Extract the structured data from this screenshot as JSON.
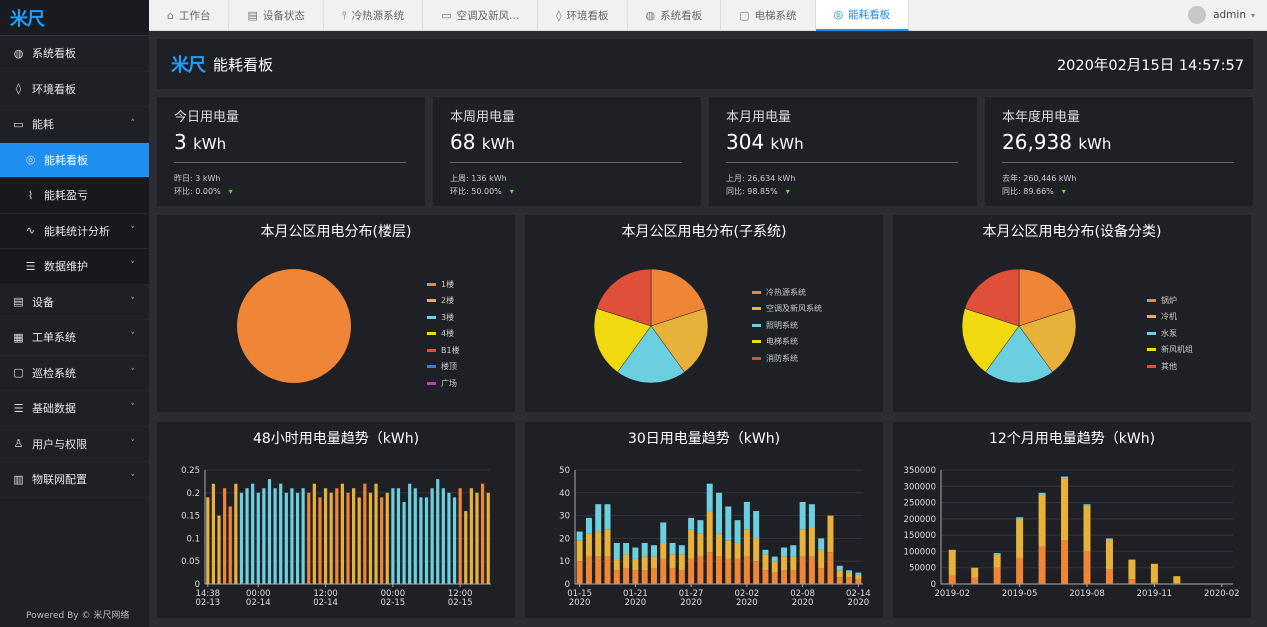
{
  "app": {
    "logo": "米尺",
    "footer": "Powered By © 米尺网络"
  },
  "sidebar": {
    "items": [
      {
        "label": "系统看板",
        "icon": "globe-icon",
        "glyph": "◍",
        "level": 1,
        "active": false,
        "chevron": ""
      },
      {
        "label": "环境看板",
        "icon": "drop-icon",
        "glyph": "◊",
        "level": 1,
        "active": false,
        "chevron": ""
      },
      {
        "label": "能耗",
        "icon": "monitor-icon",
        "glyph": "▭",
        "level": 1,
        "active": false,
        "chevron": "˄"
      },
      {
        "label": "能耗看板",
        "icon": "dashboard-icon",
        "glyph": "◎",
        "level": 2,
        "active": true,
        "chevron": ""
      },
      {
        "label": "能耗盈亏",
        "icon": "line-chart-icon",
        "glyph": "⌇",
        "level": 2,
        "active": false,
        "chevron": ""
      },
      {
        "label": "能耗统计分析",
        "icon": "pulse-icon",
        "glyph": "∿",
        "level": 2,
        "active": false,
        "chevron": "˅"
      },
      {
        "label": "数据维护",
        "icon": "database-icon",
        "glyph": "☰",
        "level": 2,
        "active": false,
        "chevron": "˅"
      },
      {
        "label": "设备",
        "icon": "device-icon",
        "glyph": "▤",
        "level": 1,
        "active": false,
        "chevron": "˅"
      },
      {
        "label": "工单系统",
        "icon": "clipboard-icon",
        "glyph": "▦",
        "level": 1,
        "active": false,
        "chevron": "˅"
      },
      {
        "label": "巡检系统",
        "icon": "note-icon",
        "glyph": "▢",
        "level": 1,
        "active": false,
        "chevron": "˅"
      },
      {
        "label": "基础数据",
        "icon": "stack-icon",
        "glyph": "☰",
        "level": 1,
        "active": false,
        "chevron": "˅"
      },
      {
        "label": "用户与权限",
        "icon": "users-icon",
        "glyph": "♙",
        "level": 1,
        "active": false,
        "chevron": "˅"
      },
      {
        "label": "物联网配置",
        "icon": "building-icon",
        "glyph": "▥",
        "level": 1,
        "active": false,
        "chevron": "˅"
      }
    ]
  },
  "tabs": [
    {
      "label": "工作台",
      "icon": "home-icon",
      "glyph": "⌂",
      "active": false
    },
    {
      "label": "设备状态",
      "icon": "server-icon",
      "glyph": "▤",
      "active": false
    },
    {
      "label": "冷热源系统",
      "icon": "thermometer-icon",
      "glyph": "⫯",
      "active": false
    },
    {
      "label": "空调及新风...",
      "icon": "aircon-icon",
      "glyph": "▭",
      "active": false
    },
    {
      "label": "环境看板",
      "icon": "drop-icon",
      "glyph": "◊",
      "active": false
    },
    {
      "label": "系统看板",
      "icon": "globe-icon",
      "glyph": "◍",
      "active": false
    },
    {
      "label": "电梯系统",
      "icon": "note-icon",
      "glyph": "▢",
      "active": false
    },
    {
      "label": "能耗看板",
      "icon": "dashboard-icon",
      "glyph": "◎",
      "active": true
    }
  ],
  "user": {
    "name": "admin",
    "caret": "▾"
  },
  "header": {
    "logo": "米尺",
    "title": "能耗看板",
    "datetime": "2020年02月15日 14:57:57"
  },
  "stats": [
    {
      "title": "今日用电量",
      "value": "3",
      "unit": "kWh",
      "line1_label": "昨日:",
      "line1_value": "3 kWh",
      "line2_label": "环比:",
      "line2_value": "0.00%"
    },
    {
      "title": "本周用电量",
      "value": "68",
      "unit": "kWh",
      "line1_label": "上周:",
      "line1_value": "136 kWh",
      "line2_label": "环比:",
      "line2_value": "50.00%"
    },
    {
      "title": "本月用电量",
      "value": "304",
      "unit": "kWh",
      "line1_label": "上月:",
      "line1_value": "26,634 kWh",
      "line2_label": "同比:",
      "line2_value": "98.85%"
    },
    {
      "title": "本年度用电量",
      "value": "26,938",
      "unit": "kWh",
      "line1_label": "去年:",
      "line1_value": "260,446 kWh",
      "line2_label": "同比:",
      "line2_value": "89.66%"
    }
  ],
  "stat_arrow": "▾",
  "colors": {
    "c1": "#ee8537",
    "c2": "#e8b13a",
    "c3": "#6bcfe0",
    "c4": "#f0d90f",
    "c5": "#e04f3a",
    "c6": "#3a7ddd",
    "c7": "#b93fb3",
    "accent": "#1e8ff0"
  },
  "chart_data": [
    {
      "type": "pie",
      "title": "本月公区用电分布(楼层)",
      "legend": [
        "1楼",
        "2楼",
        "3楼",
        "4楼",
        "B1楼",
        "楼顶",
        "广场"
      ],
      "values": [
        100,
        0,
        0,
        0,
        0,
        0,
        0
      ]
    },
    {
      "type": "pie",
      "title": "本月公区用电分布(子系统)",
      "legend": [
        "冷热源系统",
        "空调及新风系统",
        "照明系统",
        "电梯系统",
        "消防系统"
      ],
      "values": [
        20,
        20,
        20,
        20,
        20
      ]
    },
    {
      "type": "pie",
      "title": "本月公区用电分布(设备分类)",
      "legend": [
        "锅炉",
        "冷机",
        "水泵",
        "新风机组",
        "其他"
      ],
      "values": [
        20,
        20,
        20,
        20,
        20
      ]
    },
    {
      "type": "bar",
      "title": "48小时用电量趋势（kWh)",
      "ylim": [
        0,
        0.25
      ],
      "yticks": [
        "0",
        "0.05",
        "0.1",
        "0.15",
        "0.2",
        "0.25"
      ],
      "xticks": [
        {
          "i": 0,
          "l1": "14:38",
          "l2": "02-13"
        },
        {
          "i": 9,
          "l1": "00:00",
          "l2": "02-14"
        },
        {
          "i": 21,
          "l1": "12:00",
          "l2": "02-14"
        },
        {
          "i": 33,
          "l1": "00:00",
          "l2": "02-15"
        },
        {
          "i": 45,
          "l1": "12:00",
          "l2": "02-15"
        }
      ],
      "values": [
        0.19,
        0.22,
        0.15,
        0.21,
        0.17,
        0.22,
        0.2,
        0.21,
        0.22,
        0.2,
        0.21,
        0.23,
        0.21,
        0.22,
        0.2,
        0.21,
        0.2,
        0.21,
        0.2,
        0.22,
        0.19,
        0.21,
        0.2,
        0.21,
        0.22,
        0.2,
        0.21,
        0.19,
        0.22,
        0.2,
        0.22,
        0.19,
        0.2,
        0.21,
        0.21,
        0.18,
        0.22,
        0.21,
        0.19,
        0.19,
        0.21,
        0.23,
        0.21,
        0.2,
        0.19,
        0.21,
        0.16,
        0.21,
        0.2,
        0.22,
        0.2
      ],
      "colors": [
        "c2",
        "c2",
        "c2",
        "c1",
        "c1",
        "c2",
        "c3",
        "c3",
        "c3",
        "c3",
        "c3",
        "c3",
        "c3",
        "c3",
        "c3",
        "c3",
        "c3",
        "c3",
        "c1",
        "c2",
        "c1",
        "c2",
        "c2",
        "c1",
        "c2",
        "c1",
        "c2",
        "c2",
        "c1",
        "c2",
        "c2",
        "c1",
        "c2",
        "c3",
        "c3",
        "c3",
        "c3",
        "c3",
        "c3",
        "c3",
        "c3",
        "c3",
        "c3",
        "c3",
        "c3",
        "c1",
        "c2",
        "c2",
        "c2",
        "c1",
        "c2"
      ]
    },
    {
      "type": "bar",
      "title": "30日用电量趋势（kWh)",
      "ylim": [
        0,
        50
      ],
      "yticks": [
        "0",
        "10",
        "20",
        "30",
        "40",
        "50"
      ],
      "xticks": [
        {
          "i": 0,
          "l1": "01-15",
          "l2": "2020"
        },
        {
          "i": 6,
          "l1": "01-21",
          "l2": "2020"
        },
        {
          "i": 12,
          "l1": "01-27",
          "l2": "2020"
        },
        {
          "i": 18,
          "l1": "02-02",
          "l2": "2020"
        },
        {
          "i": 24,
          "l1": "02-08",
          "l2": "2020"
        },
        {
          "i": 30,
          "l1": "02-14",
          "l2": "2020"
        }
      ],
      "stacks": [
        [
          10,
          9,
          4
        ],
        [
          12,
          10,
          7
        ],
        [
          12,
          11,
          12
        ],
        [
          12,
          12,
          11
        ],
        [
          6,
          5,
          7
        ],
        [
          7,
          6,
          5
        ],
        [
          6,
          5,
          5
        ],
        [
          6,
          6,
          6
        ],
        [
          7,
          5,
          5
        ],
        [
          11,
          7,
          9
        ],
        [
          7,
          6,
          5
        ],
        [
          6,
          7,
          4
        ],
        [
          11,
          13,
          5
        ],
        [
          12,
          10,
          6
        ],
        [
          14,
          18,
          12
        ],
        [
          12,
          10,
          18
        ],
        [
          11,
          8,
          15
        ],
        [
          11,
          7,
          10
        ],
        [
          12,
          12,
          12
        ],
        [
          10,
          10,
          12
        ],
        [
          6,
          7,
          2
        ],
        [
          5,
          5,
          2
        ],
        [
          6,
          6,
          4
        ],
        [
          6,
          6,
          5
        ],
        [
          12,
          12,
          12
        ],
        [
          12,
          13,
          10
        ],
        [
          7,
          8,
          5
        ],
        [
          14,
          16,
          0
        ],
        [
          3,
          3,
          2
        ],
        [
          3,
          2,
          1
        ],
        [
          2,
          2,
          1
        ]
      ]
    },
    {
      "type": "bar",
      "title": "12个月用电量趋势（kWh)",
      "ylim": [
        0,
        350000
      ],
      "yticks": [
        "0",
        "50000",
        "100000",
        "150000",
        "200000",
        "250000",
        "300000",
        "350000"
      ],
      "xticks": [
        {
          "i": 0,
          "l1": "2019-02",
          "l2": ""
        },
        {
          "i": 3,
          "l1": "2019-05",
          "l2": ""
        },
        {
          "i": 6,
          "l1": "2019-08",
          "l2": ""
        },
        {
          "i": 9,
          "l1": "2019-11",
          "l2": ""
        },
        {
          "i": 12,
          "l1": "2020-02",
          "l2": ""
        }
      ],
      "stacks": [
        [
          25000,
          80000,
          0
        ],
        [
          20000,
          30000,
          0
        ],
        [
          50000,
          40000,
          5000
        ],
        [
          80000,
          120000,
          5000
        ],
        [
          115000,
          160000,
          5000
        ],
        [
          135000,
          190000,
          5000
        ],
        [
          100000,
          140000,
          5000
        ],
        [
          45000,
          90000,
          5000
        ],
        [
          15000,
          60000,
          0
        ],
        [
          5000,
          57000,
          0
        ],
        [
          2000,
          22000,
          0
        ],
        [
          0,
          0,
          0
        ],
        [
          0,
          0,
          0
        ]
      ]
    }
  ]
}
